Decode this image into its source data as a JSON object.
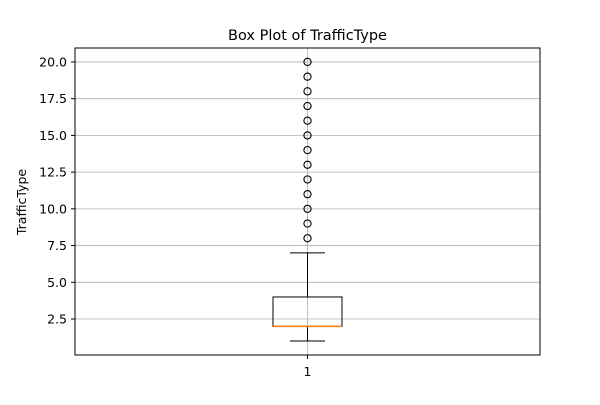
{
  "chart_data": {
    "type": "box",
    "title": "Box Plot of TrafficType",
    "xlabel": "",
    "ylabel": "TrafficType",
    "categories": [
      "1"
    ],
    "ylim": [
      0.05,
      20.95
    ],
    "yticks": [
      "2.5",
      "5.0",
      "7.5",
      "10.0",
      "12.5",
      "15.0",
      "17.5",
      "20.0"
    ],
    "grid": true,
    "series": [
      {
        "whisker_low": 1,
        "q1": 2,
        "median": 2,
        "q3": 4,
        "whisker_high": 7,
        "outliers": [
          8,
          9,
          10,
          11,
          12,
          13,
          14,
          15,
          16,
          17,
          18,
          19,
          20
        ]
      }
    ],
    "colors": {
      "box": "#000000",
      "median": "#ff7f0e",
      "grid": "#b0b0b0"
    }
  }
}
